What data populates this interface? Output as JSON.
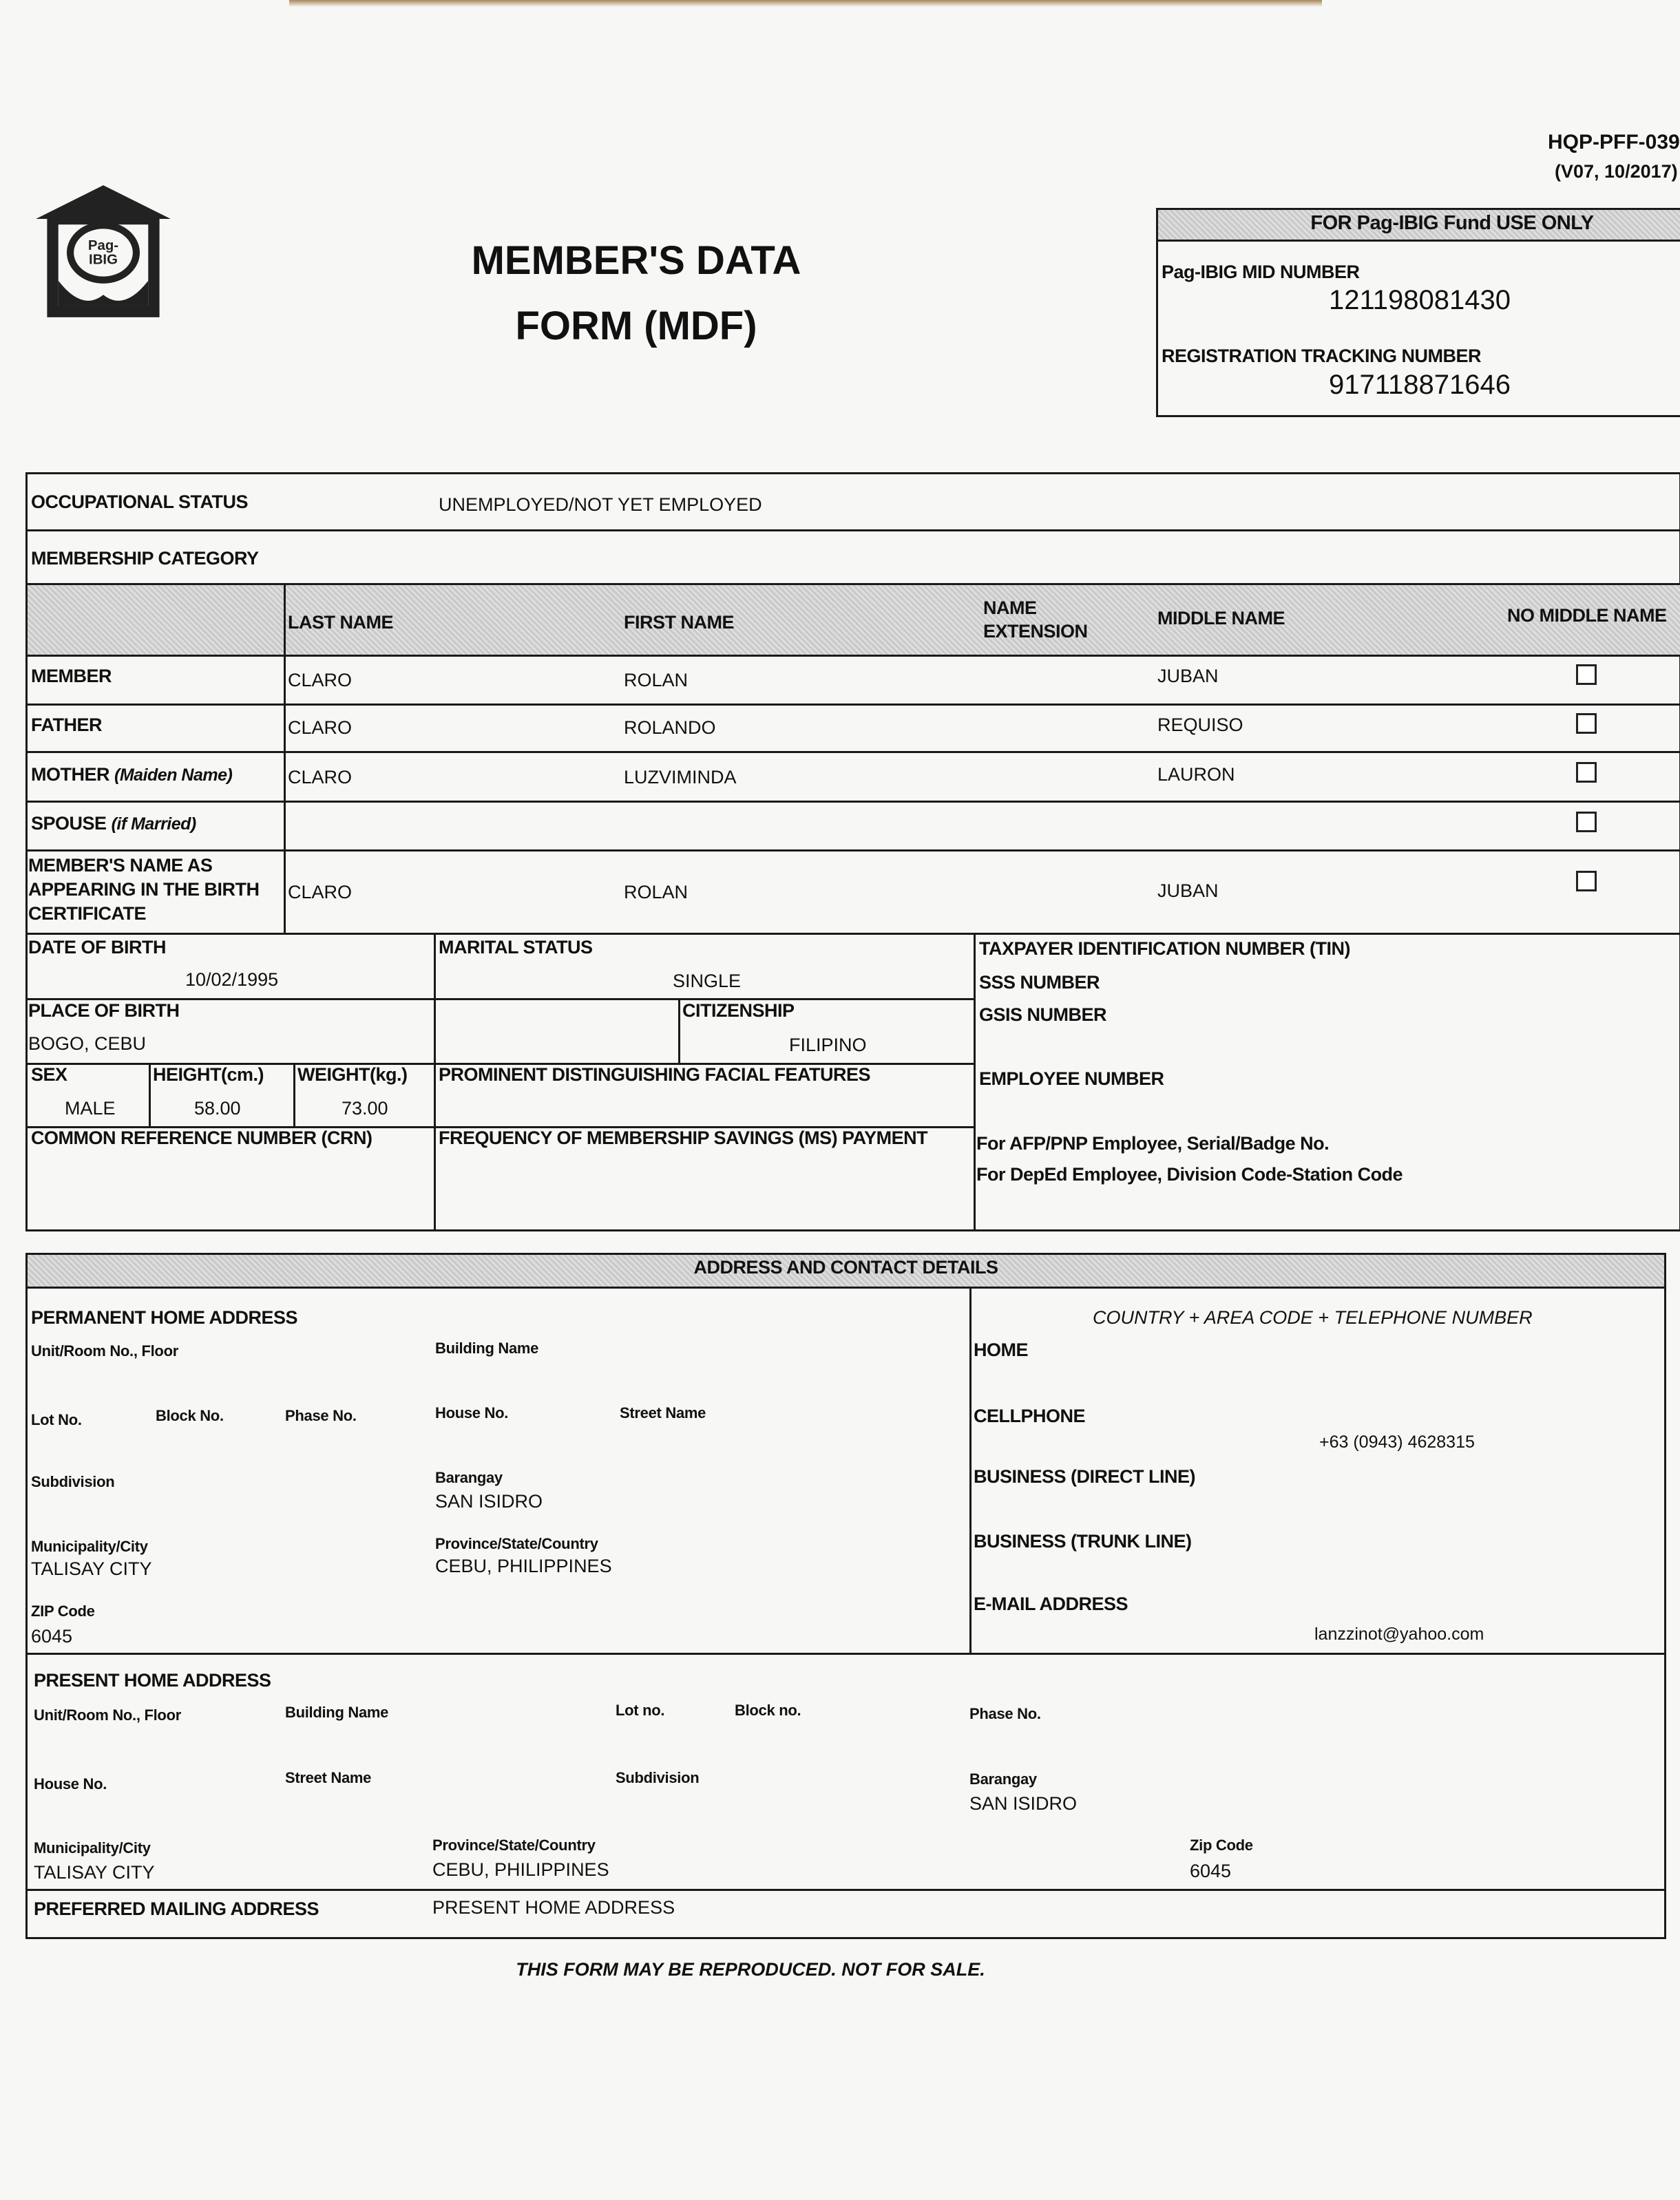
{
  "header": {
    "form_code": "HQP-PFF-039",
    "form_version": "(V07, 10/2017)",
    "logo_text": "Pag-IBIG Fund",
    "title_line1": "MEMBER'S DATA",
    "title_line2": "FORM (MDF)"
  },
  "fund_use": {
    "title": "FOR Pag-IBIG Fund USE ONLY",
    "mid_label": "Pag-IBIG MID NUMBER",
    "mid_value": "121198081430",
    "rtn_label": "REGISTRATION TRACKING NUMBER",
    "rtn_value": "917118871646"
  },
  "personal": {
    "occupational_status_label": "OCCUPATIONAL STATUS",
    "occupational_status_value": "UNEMPLOYED/NOT YET EMPLOYED",
    "membership_category_label": "MEMBERSHIP CATEGORY",
    "columns": {
      "last_name": "LAST NAME",
      "first_name": "FIRST NAME",
      "name_extension_1": "NAME",
      "name_extension_2": "EXTENSION",
      "middle_name": "MIDDLE NAME",
      "no_middle_name": "NO MIDDLE NAME"
    },
    "rows": [
      {
        "label": "MEMBER",
        "label_note": "",
        "last": "CLARO",
        "first": "ROLAN",
        "middle": "JUBAN",
        "no_middle_name": false
      },
      {
        "label": "FATHER",
        "label_note": "",
        "last": "CLARO",
        "first": "ROLANDO",
        "middle": "REQUISO",
        "no_middle_name": false
      },
      {
        "label": "MOTHER",
        "label_note": "(Maiden Name)",
        "last": "CLARO",
        "first": "LUZVIMINDA",
        "middle": "LAURON",
        "no_middle_name": false
      },
      {
        "label": "SPOUSE",
        "label_note": "(if Married)",
        "last": "",
        "first": "",
        "middle": "",
        "no_middle_name": false
      },
      {
        "label_line1": "MEMBER'S NAME AS",
        "label_line2": "APPEARING IN THE BIRTH",
        "label_line3": "CERTIFICATE",
        "last": "CLARO",
        "first": "ROLAN",
        "middle": "JUBAN",
        "no_middle_name": false
      }
    ],
    "dob_label": "DATE OF BIRTH",
    "dob_value": "10/02/1995",
    "marital_label": "MARITAL STATUS",
    "marital_value": "SINGLE",
    "pob_label": "PLACE OF BIRTH",
    "pob_value": "BOGO, CEBU",
    "citizenship_label": "CITIZENSHIP",
    "citizenship_value": "FILIPINO",
    "sex_label": "SEX",
    "sex_value": "MALE",
    "height_label": "HEIGHT(cm.)",
    "height_value": "58.00",
    "weight_label": "WEIGHT(kg.)",
    "weight_value": "73.00",
    "features_label": "PROMINENT DISTINGUISHING FACIAL FEATURES",
    "crn_label": "COMMON REFERENCE NUMBER (CRN)",
    "frequency_label": "FREQUENCY OF MEMBERSHIP SAVINGS (MS) PAYMENT",
    "tin_label": "TAXPAYER IDENTIFICATION NUMBER (TIN)",
    "sss_label": "SSS NUMBER",
    "gsis_label": "GSIS NUMBER",
    "employee_label": "EMPLOYEE NUMBER",
    "afp_label": "For AFP/PNP Employee, Serial/Badge No.",
    "deped_label": "For DepEd Employee, Division Code-Station Code"
  },
  "address": {
    "section_title": "ADDRESS AND CONTACT DETAILS",
    "permanent": {
      "title": "PERMANENT HOME ADDRESS",
      "unit_label": "Unit/Room No., Floor",
      "building_label": "Building Name",
      "lot_label": "Lot No.",
      "block_label": "Block No.",
      "phase_label": "Phase No.",
      "house_label": "House No.",
      "street_label": "Street Name",
      "subdivision_label": "Subdivision",
      "barangay_label": "Barangay",
      "barangay_value": "SAN ISIDRO",
      "city_label": "Municipality/City",
      "city_value": "TALISAY CITY",
      "province_label": "Province/State/Country",
      "province_value": "CEBU, PHILIPPINES",
      "zip_label": "ZIP Code",
      "zip_value": "6045"
    },
    "contact": {
      "header": "COUNTRY + AREA CODE + TELEPHONE NUMBER",
      "home_label": "HOME",
      "cell_label": "CELLPHONE",
      "cell_value": "+63 (0943) 4628315",
      "business_direct_label": "BUSINESS (DIRECT LINE)",
      "business_trunk_label": "BUSINESS (TRUNK LINE)",
      "email_label": "E-MAIL ADDRESS",
      "email_value": "lanzzinot@yahoo.com"
    },
    "present": {
      "title": "PRESENT HOME ADDRESS",
      "unit_label": "Unit/Room No., Floor",
      "building_label": "Building Name",
      "lot_label": "Lot no.",
      "block_label": "Block no.",
      "phase_label": "Phase No.",
      "house_label": "House No.",
      "street_label": "Street Name",
      "subdivision_label": "Subdivision",
      "barangay_label": "Barangay",
      "barangay_value": "SAN ISIDRO",
      "city_label": "Municipality/City",
      "city_value": "TALISAY CITY",
      "province_label": "Province/State/Country",
      "province_value": "CEBU, PHILIPPINES",
      "zip_label": "Zip Code",
      "zip_value": "6045"
    },
    "mailing_label": "PREFERRED MAILING ADDRESS",
    "mailing_value": "PRESENT HOME ADDRESS"
  },
  "footer": "THIS FORM MAY BE REPRODUCED. NOT FOR SALE."
}
